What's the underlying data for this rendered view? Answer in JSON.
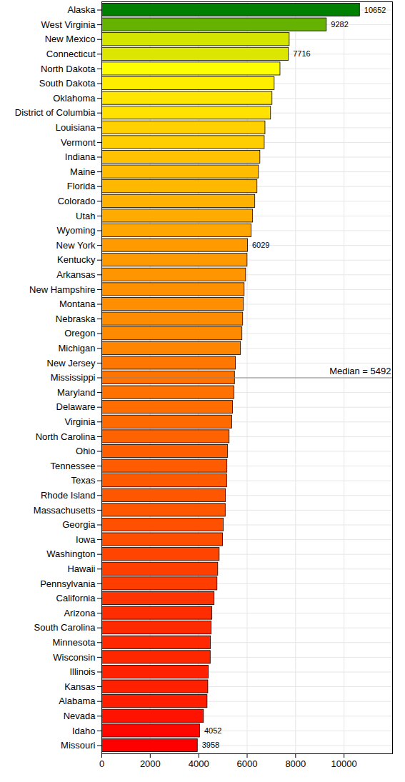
{
  "chart_data": {
    "type": "bar",
    "orientation": "horizontal",
    "categories": [
      "Alaska",
      "West Virginia",
      "New Mexico",
      "Connecticut",
      "North Dakota",
      "South Dakota",
      "Oklahoma",
      "District of Columbia",
      "Louisiana",
      "Vermont",
      "Indiana",
      "Maine",
      "Florida",
      "Colorado",
      "Utah",
      "Wyoming",
      "New York",
      "Kentucky",
      "Arkansas",
      "New Hampshire",
      "Montana",
      "Nebraska",
      "Oregon",
      "Michigan",
      "New Jersey",
      "Mississippi",
      "Maryland",
      "Delaware",
      "Virginia",
      "North Carolina",
      "Ohio",
      "Tennessee",
      "Texas",
      "Rhode Island",
      "Massachusetts",
      "Georgia",
      "Iowa",
      "Washington",
      "Hawaii",
      "Pennsylvania",
      "California",
      "Arizona",
      "South Carolina",
      "Minnesota",
      "Wisconsin",
      "Illinois",
      "Kansas",
      "Alabama",
      "Nevada",
      "Idaho",
      "Missouri"
    ],
    "values": [
      10652,
      9282,
      7750,
      7716,
      7370,
      7130,
      7040,
      6980,
      6750,
      6720,
      6540,
      6480,
      6420,
      6330,
      6240,
      6180,
      6029,
      6010,
      5950,
      5890,
      5860,
      5830,
      5800,
      5740,
      5530,
      5492,
      5470,
      5410,
      5380,
      5270,
      5210,
      5180,
      5170,
      5120,
      5110,
      5030,
      5000,
      4860,
      4800,
      4770,
      4650,
      4560,
      4530,
      4500,
      4490,
      4410,
      4390,
      4360,
      4210,
      4052,
      3958
    ],
    "value_labels": [
      "10652",
      "9282",
      null,
      "7716",
      null,
      null,
      null,
      null,
      null,
      null,
      null,
      null,
      null,
      null,
      null,
      null,
      "6029",
      null,
      null,
      null,
      null,
      null,
      null,
      null,
      null,
      null,
      null,
      null,
      null,
      null,
      null,
      null,
      null,
      null,
      null,
      null,
      null,
      null,
      null,
      null,
      null,
      null,
      null,
      null,
      null,
      null,
      null,
      null,
      null,
      "4052",
      "3958"
    ],
    "data_labels": true,
    "colors": [
      "#008000",
      "#66b200",
      "#d4e600",
      "#dce600",
      "#ffff00",
      "#ffed00",
      "#ffe600",
      "#ffe200",
      "#ffd100",
      "#ffce00",
      "#ffc100",
      "#ffbc00",
      "#ffb800",
      "#ffb100",
      "#ffab00",
      "#ffa600",
      "#ff9b00",
      "#ff9900",
      "#ff9500",
      "#ff9000",
      "#ff8e00",
      "#ff8c00",
      "#ff8a00",
      "#ff8500",
      "#ff7600",
      "#ff7300",
      "#ff7100",
      "#ff6d00",
      "#ff6a00",
      "#ff6200",
      "#ff5e00",
      "#ff5b00",
      "#ff5a00",
      "#ff5700",
      "#ff5600",
      "#ff5000",
      "#ff4e00",
      "#ff4300",
      "#ff3f00",
      "#ff3d00",
      "#ff3400",
      "#ff2d00",
      "#ff2b00",
      "#ff2800",
      "#ff2700",
      "#ff2200",
      "#ff2000",
      "#ff1e00",
      "#ff1300",
      "#ff0700",
      "#ff0000"
    ],
    "xlim": [
      0,
      12000
    ],
    "xticks": [
      0,
      2000,
      4000,
      6000,
      8000,
      10000
    ],
    "grid": true,
    "median": {
      "label": "Median = 5492",
      "value": 5492,
      "category": "Mississippi"
    }
  }
}
